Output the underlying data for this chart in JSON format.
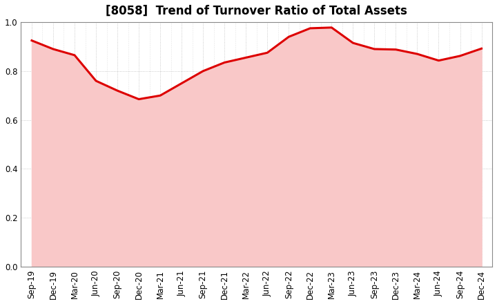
{
  "title": "[8058]  Trend of Turnover Ratio of Total Assets",
  "x_labels": [
    "Sep-19",
    "Dec-19",
    "Mar-20",
    "Jun-20",
    "Sep-20",
    "Dec-20",
    "Mar-21",
    "Jun-21",
    "Sep-21",
    "Dec-21",
    "Mar-22",
    "Jun-22",
    "Sep-22",
    "Dec-22",
    "Mar-23",
    "Jun-23",
    "Sep-23",
    "Dec-23",
    "Mar-24",
    "Jun-24",
    "Sep-24",
    "Dec-24"
  ],
  "y_values": [
    0.925,
    0.89,
    0.865,
    0.76,
    0.72,
    0.685,
    0.7,
    0.75,
    0.8,
    0.835,
    0.855,
    0.875,
    0.94,
    0.975,
    0.978,
    0.915,
    0.89,
    0.888,
    0.87,
    0.843,
    0.862,
    0.892
  ],
  "line_color": "#dd0000",
  "fill_color": "#f9c8c8",
  "ylim": [
    0.0,
    1.0
  ],
  "yticks": [
    0.0,
    0.2,
    0.4,
    0.6,
    0.8,
    1.0
  ],
  "background_color": "#ffffff",
  "grid_color": "#aaaaaa",
  "title_fontsize": 12,
  "tick_fontsize": 8.5,
  "line_width": 2.2
}
